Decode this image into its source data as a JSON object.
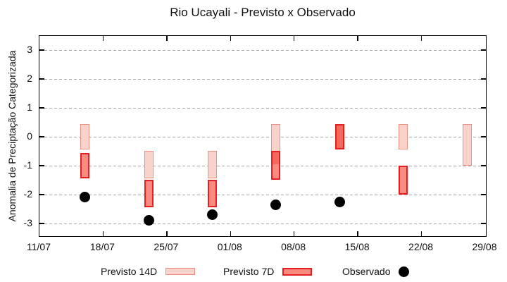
{
  "title": "Rio Ucayali - Previsto x Observado",
  "chart_data": {
    "type": "bar",
    "subtype": "range-boxes-with-scatter",
    "title": "Rio Ucayali - Previsto x Observado",
    "xlabel": "",
    "ylabel": "Anomalia de Preciptação Categorizada",
    "ylim": [
      -3.5,
      3.5
    ],
    "ytick_values": [
      3,
      2,
      1,
      0,
      -1,
      -2,
      -3
    ],
    "ytick_labels": [
      "3",
      "2",
      "1",
      "0",
      "-1",
      "-2",
      "-3"
    ],
    "xtick_labels": [
      "11/07",
      "18/07",
      "25/07",
      "01/08",
      "08/08",
      "15/08",
      "22/08",
      "29/08"
    ],
    "xtick_days": [
      0,
      7,
      14,
      21,
      28,
      35,
      42,
      49
    ],
    "grid": "horizontal-dashed",
    "legend_position": "bottom-center",
    "colors": {
      "previsto_14d_fill": "#f9d3cb",
      "previsto_14d_border": "#f0917f",
      "previsto_7d_fill": "#fb8b80",
      "previsto_7d_border": "#e62020",
      "overlap_fill": "#f4695c",
      "observado": "#000000",
      "grid": "#a9a9a9"
    },
    "series": [
      {
        "name": "Previsto 14D",
        "type": "range-box"
      },
      {
        "name": "Previsto 7D",
        "type": "range-box"
      },
      {
        "name": "Observado",
        "type": "scatter"
      }
    ],
    "clusters": [
      {
        "date": "16/07",
        "day": 5,
        "previsto_14d": [
          0.45,
          -0.45
        ],
        "previsto_7d": [
          -0.55,
          -1.45
        ],
        "observado": -2.1
      },
      {
        "date": "23/07",
        "day": 12,
        "previsto_14d": [
          -0.5,
          -1.45
        ],
        "previsto_7d": [
          -1.5,
          -2.45
        ],
        "observado": -2.9
      },
      {
        "date": "30/07",
        "day": 19,
        "previsto_14d": [
          -0.5,
          -1.45
        ],
        "previsto_7d": [
          -1.5,
          -2.45
        ],
        "observado": -2.7
      },
      {
        "date": "06/08",
        "day": 26,
        "previsto_14d": [
          0.45,
          -1.0
        ],
        "previsto_7d": [
          -0.5,
          -1.5
        ],
        "observado": -2.35
      },
      {
        "date": "13/08",
        "day": 33,
        "previsto_14d": [
          0.45,
          -0.45
        ],
        "previsto_7d": [
          0.45,
          -0.45
        ],
        "observado": -2.25
      },
      {
        "date": "20/08",
        "day": 40,
        "previsto_14d": [
          0.45,
          -0.45
        ],
        "previsto_7d": [
          -1.0,
          -2.0
        ],
        "observado": null
      },
      {
        "date": "27/08",
        "day": 47,
        "previsto_14d": [
          0.45,
          -1.0
        ],
        "previsto_7d": null,
        "observado": null
      }
    ]
  },
  "legend": {
    "items": [
      {
        "label": "Previsto 14D",
        "swatch": "box-pink"
      },
      {
        "label": "Previsto 7D",
        "swatch": "box-red"
      },
      {
        "label": "Observado",
        "swatch": "dot-black"
      }
    ]
  }
}
